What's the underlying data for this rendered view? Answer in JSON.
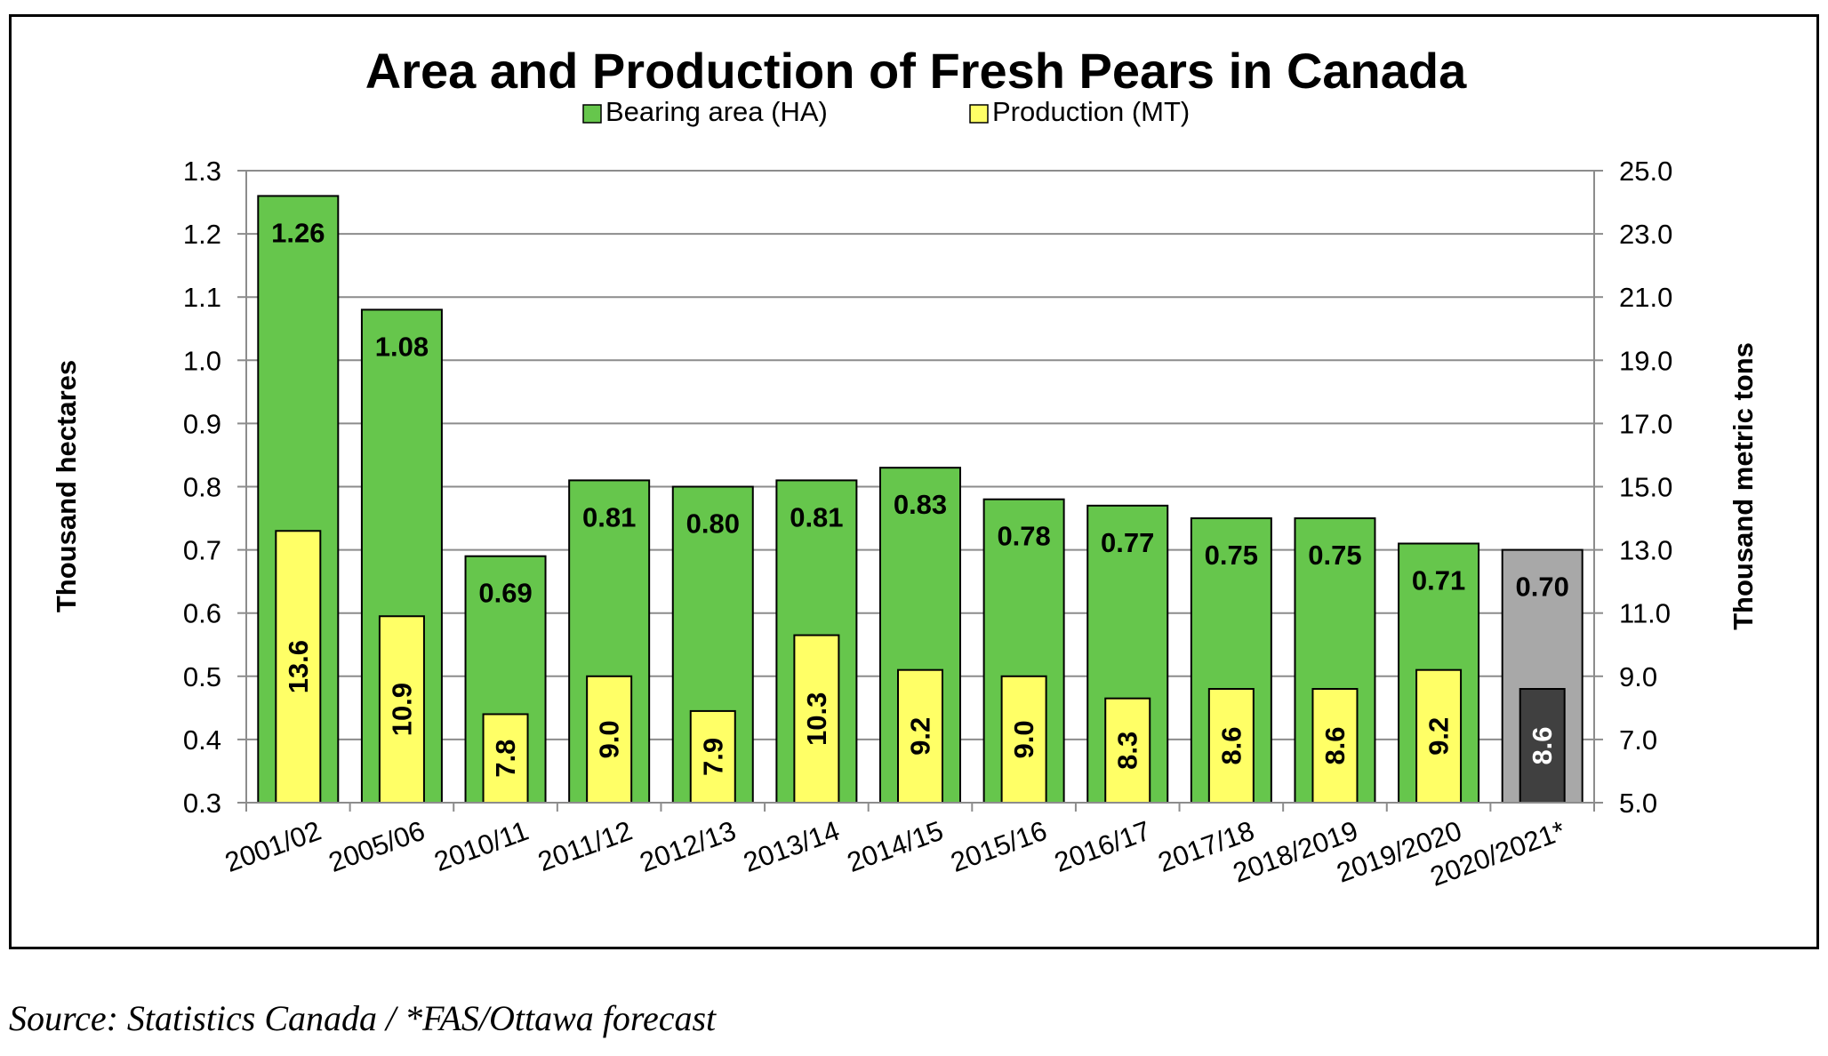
{
  "chart_data": {
    "type": "bar",
    "title": "Area and Production of Fresh Pears in Canada",
    "categories": [
      "2001/02",
      "2005/06",
      "2010/11",
      "2011/12",
      "2012/13",
      "2013/14",
      "2014/15",
      "2015/16",
      "2016/17",
      "2017/18",
      "2018/2019",
      "2019/2020",
      "2020/2021*"
    ],
    "series": [
      {
        "name": "Bearing area (HA)",
        "axis": "left",
        "values": [
          1.26,
          1.08,
          0.69,
          0.81,
          0.8,
          0.81,
          0.83,
          0.78,
          0.77,
          0.75,
          0.75,
          0.71,
          0.7
        ],
        "labels": [
          "1.26",
          "1.08",
          "0.69",
          "0.81",
          "0.80",
          "0.81",
          "0.83",
          "0.78",
          "0.77",
          "0.75",
          "0.75",
          "0.71",
          "0.70"
        ],
        "color": "#66c64c",
        "forecast_color": "#a8a8a8"
      },
      {
        "name": "Production (MT)",
        "axis": "right",
        "values": [
          13.6,
          10.9,
          7.8,
          9.0,
          7.9,
          10.3,
          9.2,
          9.0,
          8.3,
          8.6,
          8.6,
          9.2,
          8.6
        ],
        "labels": [
          "13.6",
          "10.9",
          "7.8",
          "9.0",
          "7.9",
          "10.3",
          "9.2",
          "9.0",
          "8.3",
          "8.6",
          "8.6",
          "9.2",
          "8.6"
        ],
        "color": "#ffff66",
        "forecast_color": "#404040"
      }
    ],
    "forecast_index": 12,
    "ylabel": "Thousand hectares",
    "y2label": "Thousand metric tons",
    "ylim": [
      0.3,
      1.3
    ],
    "y2lim": [
      5.0,
      25.0
    ],
    "yticks": [
      "0.3",
      "0.4",
      "0.5",
      "0.6",
      "0.7",
      "0.8",
      "0.9",
      "1.0",
      "1.1",
      "1.2",
      "1.3"
    ],
    "y2ticks": [
      "5.0",
      "7.0",
      "9.0",
      "11.0",
      "13.0",
      "15.0",
      "17.0",
      "19.0",
      "21.0",
      "23.0",
      "25.0"
    ],
    "grid": true,
    "legend_position": "top"
  },
  "source_note": "Source: Statistics Canada / *FAS/Ottawa forecast"
}
